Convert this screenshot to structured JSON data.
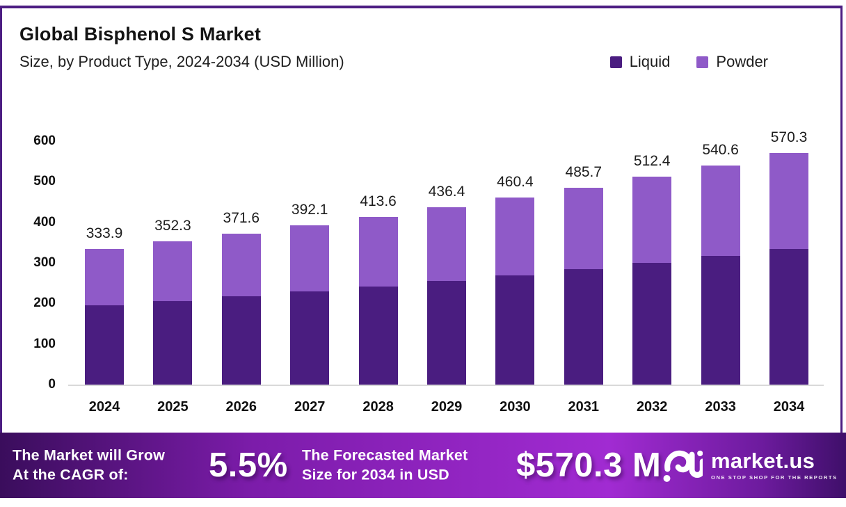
{
  "header": {
    "title": "Global Bisphenol S Market",
    "subtitle": "Size, by Product Type, 2024-2034 (USD Million)"
  },
  "chart_data": {
    "type": "bar",
    "stacked": true,
    "categories": [
      "2024",
      "2025",
      "2026",
      "2027",
      "2028",
      "2029",
      "2030",
      "2031",
      "2032",
      "2033",
      "2034"
    ],
    "series": [
      {
        "name": "Liquid",
        "color": "#4a1d80",
        "values": [
          195.5,
          206.3,
          217.6,
          229.6,
          242.2,
          255.6,
          269.6,
          284.4,
          300.1,
          316.6,
          334.0
        ]
      },
      {
        "name": "Powder",
        "color": "#8f5ac8",
        "values": [
          138.4,
          146.0,
          154.0,
          162.5,
          171.4,
          180.8,
          190.8,
          201.3,
          212.3,
          224.0,
          236.3
        ]
      }
    ],
    "totals": [
      333.9,
      352.3,
      371.6,
      392.1,
      413.6,
      436.4,
      460.4,
      485.7,
      512.4,
      540.6,
      570.3
    ],
    "title": "Global Bisphenol S Market",
    "subtitle": "Size, by Product Type, 2024-2034 (USD Million)",
    "xlabel": "",
    "ylabel": "",
    "ylim": [
      0,
      600
    ],
    "yticks": [
      0,
      100,
      200,
      300,
      400,
      500,
      600
    ],
    "grid": false,
    "legend_position": "top-right"
  },
  "footer": {
    "cagr_label_line1": "The Market will Grow",
    "cagr_label_line2": "At the CAGR of:",
    "cagr_value": "5.5%",
    "forecast_label_line1": "The Forecasted Market",
    "forecast_label_line2": "Size for 2034 in USD",
    "forecast_value": "$570.3 M",
    "brand": {
      "name": "market.us",
      "tagline": "ONE STOP SHOP FOR THE REPORTS"
    }
  },
  "colors": {
    "liquid": "#4a1d80",
    "powder": "#8f5ac8",
    "frame_border": "#4c1d82",
    "baseline": "#d9d9d9",
    "footer_gradient_left": "#3a0d5c",
    "footer_gradient_mid": "#a12bd2",
    "footer_gradient_right": "#3f0f6a",
    "text_dark": "#141414",
    "text_white": "#ffffff"
  }
}
